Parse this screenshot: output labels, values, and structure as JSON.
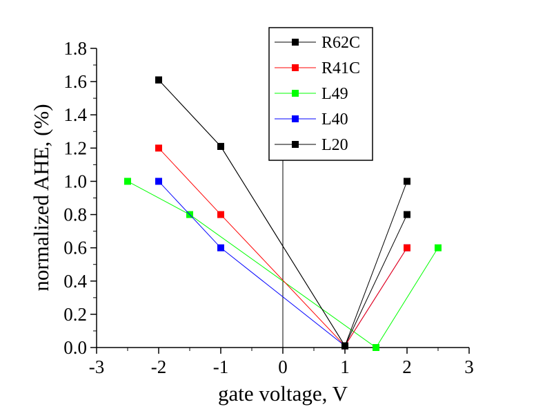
{
  "chart_data": {
    "type": "line",
    "xlabel": "gate voltage, V",
    "ylabel": "normalized AHE, (%)",
    "xlim": [
      -3,
      3
    ],
    "ylim": [
      0.0,
      1.8
    ],
    "xticks": [
      "-3",
      "-2",
      "-1",
      "0",
      "1",
      "2",
      "3"
    ],
    "yticks": [
      "0.0",
      "0.2",
      "0.4",
      "0.6",
      "0.8",
      "1.0",
      "1.2",
      "1.4",
      "1.6",
      "1.8"
    ],
    "vertical_line_x": 0,
    "legend_position": "top-center",
    "series": [
      {
        "name": "R62C",
        "color": "#000000",
        "x": [
          -2,
          -1,
          1,
          2
        ],
        "y": [
          1.61,
          1.21,
          0.01,
          1.0
        ]
      },
      {
        "name": "R41C",
        "color": "#ff0000",
        "x": [
          -2,
          -1,
          1,
          2
        ],
        "y": [
          1.2,
          0.8,
          0.01,
          0.6
        ]
      },
      {
        "name": "L49",
        "color": "#00ff00",
        "x": [
          -2.5,
          -1.5,
          1.5,
          2.5
        ],
        "y": [
          1.0,
          0.8,
          0.0,
          0.6
        ]
      },
      {
        "name": "L40",
        "color": "#0000ff",
        "x": [
          -2,
          -1,
          1,
          2
        ],
        "y": [
          1.0,
          0.6,
          0.01,
          0.6
        ]
      },
      {
        "name": "L20",
        "color": "#000000",
        "x": [
          -2,
          -1,
          1,
          2
        ],
        "y": [
          1.61,
          1.21,
          0.01,
          0.8
        ]
      }
    ]
  }
}
